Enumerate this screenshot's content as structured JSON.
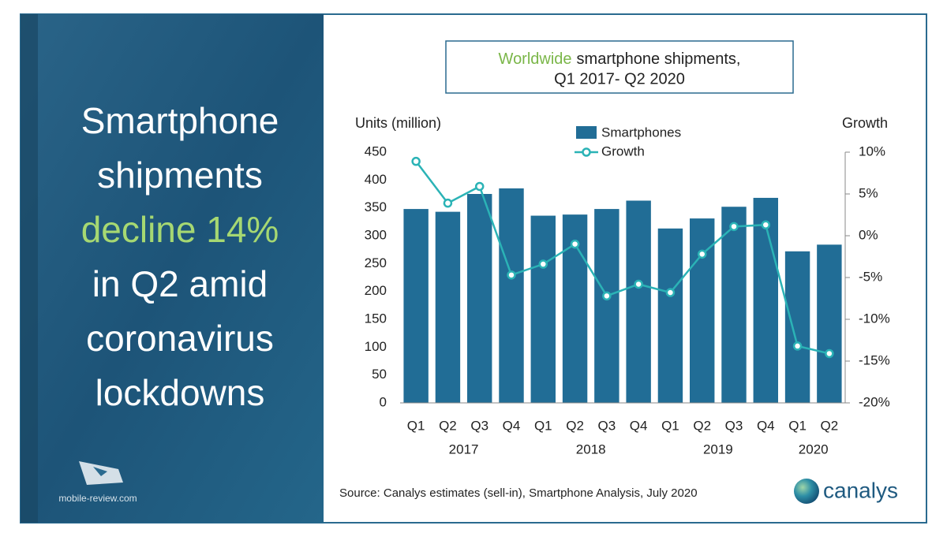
{
  "headline": {
    "lines": [
      "Smartphone",
      "shipments",
      "decline 14%",
      "in Q2 amid",
      "coronavirus",
      "lockdowns"
    ],
    "highlight_line": 2
  },
  "watermark": "mobile-review.com",
  "chart_data": {
    "type": "bar",
    "title_highlight": "Worldwide",
    "title": "smartphone shipments,",
    "subtitle": "Q1 2017- Q2 2020",
    "y_label": "Units (million)",
    "y2_label": "Growth",
    "categories": [
      "Q1",
      "Q2",
      "Q3",
      "Q4",
      "Q1",
      "Q2",
      "Q3",
      "Q4",
      "Q1",
      "Q2",
      "Q3",
      "Q4",
      "Q1",
      "Q2"
    ],
    "groups": [
      "2017",
      "2018",
      "2019",
      "2020"
    ],
    "series": [
      {
        "name": "Smartphones",
        "type": "bar",
        "color": "#216d96",
        "values": [
          348,
          343,
          375,
          385,
          336,
          338,
          348,
          363,
          313,
          331,
          352,
          368,
          272,
          284
        ]
      },
      {
        "name": "Growth",
        "type": "line",
        "axis": "y2",
        "color": "#2bb3b6",
        "values": [
          8.9,
          3.9,
          5.9,
          -4.7,
          -3.4,
          -1.0,
          -7.2,
          -5.8,
          -6.8,
          -2.2,
          1.1,
          1.3,
          -13.2,
          -14.1
        ]
      }
    ],
    "ylim": [
      0,
      450
    ],
    "yticks": [
      0,
      50,
      100,
      150,
      200,
      250,
      300,
      350,
      400,
      450
    ],
    "y2lim": [
      -20,
      10
    ],
    "y2ticks": [
      {
        "value": -20,
        "label": "-20%"
      },
      {
        "value": -15,
        "label": "-15%"
      },
      {
        "value": -10,
        "label": "-10%"
      },
      {
        "value": -5,
        "label": "-5%"
      },
      {
        "value": 0,
        "label": "0%"
      },
      {
        "value": 5,
        "label": "5%"
      },
      {
        "value": 10,
        "label": "10%"
      }
    ],
    "source": "Source: Canalys estimates (sell-in), Smartphone Analysis, July 2020",
    "logo": "canalys"
  }
}
